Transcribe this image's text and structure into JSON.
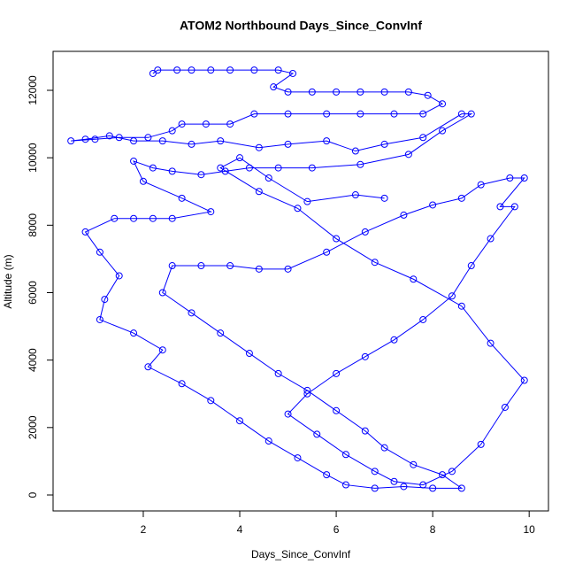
{
  "chart_data": {
    "type": "line",
    "marker": "circle",
    "title": "ATOM2 Northbound Days_Since_ConvInf",
    "x_label": "Days_Since_ConvInf",
    "y_label": "Altitude (m)",
    "xlim": [
      0.13,
      10.4
    ],
    "ylim": [
      -473,
      13155
    ],
    "xticks": [
      2,
      4,
      6,
      8,
      10
    ],
    "yticks": [
      0,
      2000,
      4000,
      6000,
      8000,
      10000,
      12000
    ],
    "x": [
      2.2,
      2.3,
      2.7,
      3.0,
      3.4,
      3.8,
      4.3,
      4.8,
      5.1,
      4.7,
      5.0,
      5.5,
      6.0,
      6.5,
      7.0,
      7.5,
      7.9,
      8.2,
      7.8,
      7.2,
      6.5,
      5.8,
      5.0,
      4.3,
      3.8,
      3.3,
      2.8,
      2.6,
      2.1,
      1.5,
      1.0,
      0.5,
      0.8,
      1.3,
      1.8,
      2.4,
      3.0,
      3.6,
      4.4,
      5.0,
      5.8,
      6.4,
      7.0,
      7.8,
      8.6,
      8.8,
      8.2,
      7.5,
      6.5,
      5.5,
      4.8,
      4.2,
      3.7,
      3.2,
      2.6,
      2.2,
      1.8,
      2.0,
      2.8,
      3.4,
      2.6,
      2.2,
      1.8,
      1.4,
      0.8,
      1.1,
      1.5,
      1.2,
      1.1,
      1.8,
      2.4,
      2.1,
      2.8,
      3.4,
      4.0,
      4.6,
      5.2,
      5.8,
      6.2,
      6.8,
      7.4,
      8.0,
      8.6,
      8.2,
      7.6,
      7.0,
      6.6,
      6.0,
      5.4,
      4.8,
      4.2,
      3.6,
      3.0,
      2.4,
      2.6,
      3.2,
      3.8,
      4.4,
      5.0,
      5.8,
      6.6,
      7.4,
      8.0,
      8.6,
      9.0,
      9.6,
      9.9,
      9.4,
      9.7,
      9.2,
      8.8,
      8.4,
      7.8,
      7.2,
      6.6,
      6.0,
      5.4,
      5.0,
      5.6,
      6.2,
      6.8,
      7.2,
      7.8,
      8.4,
      9.0,
      9.5,
      9.9,
      9.2,
      8.6,
      7.6,
      6.8,
      6.0,
      5.2,
      4.4,
      3.6,
      4.0,
      4.6,
      5.4,
      6.4,
      7.0
    ],
    "series": [
      {
        "color": "#0000ff",
        "values": [
          12500,
          12600,
          12600,
          12600,
          12600,
          12600,
          12600,
          12600,
          12500,
          12100,
          11950,
          11950,
          11950,
          11950,
          11950,
          11950,
          11850,
          11600,
          11300,
          11300,
          11300,
          11300,
          11300,
          11300,
          11000,
          11000,
          11000,
          10800,
          10600,
          10600,
          10550,
          10500,
          10550,
          10650,
          10500,
          10500,
          10400,
          10500,
          10300,
          10400,
          10500,
          10200,
          10400,
          10600,
          11300,
          11300,
          10800,
          10100,
          9800,
          9700,
          9700,
          9700,
          9600,
          9500,
          9600,
          9700,
          9900,
          9300,
          8800,
          8400,
          8200,
          8200,
          8200,
          8200,
          7800,
          7200,
          6500,
          5800,
          5200,
          4800,
          4300,
          3800,
          3300,
          2800,
          2200,
          1600,
          1100,
          600,
          300,
          200,
          250,
          200,
          200,
          600,
          900,
          1400,
          1900,
          2500,
          3100,
          3600,
          4200,
          4800,
          5400,
          6000,
          6800,
          6800,
          6800,
          6700,
          6700,
          7200,
          7800,
          8300,
          8600,
          8800,
          9200,
          9400,
          9400,
          8550,
          8550,
          7600,
          6800,
          5900,
          5200,
          4600,
          4100,
          3600,
          3000,
          2400,
          1800,
          1200,
          700,
          400,
          300,
          700,
          1500,
          2600,
          3400,
          4500,
          5600,
          6400,
          6900,
          7600,
          8500,
          9000,
          9700,
          10000,
          9400,
          8700,
          8900,
          8800
        ]
      }
    ]
  }
}
